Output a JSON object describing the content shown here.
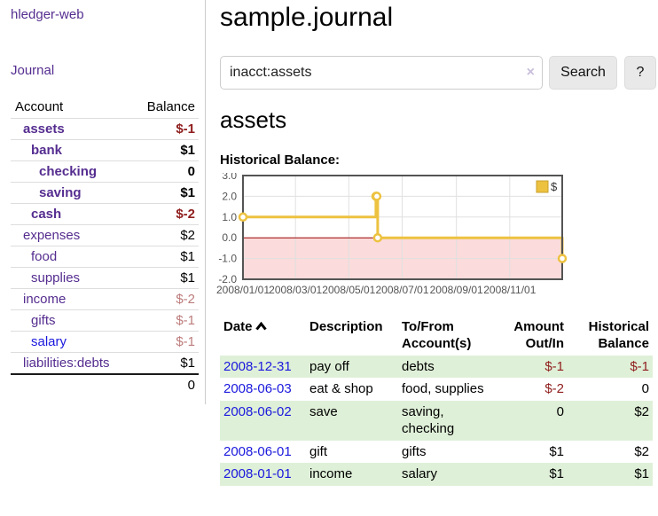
{
  "sidebar": {
    "brand": "hledger-web",
    "nav_journal": "Journal",
    "accounts_table": {
      "headers": [
        "Account",
        "Balance"
      ],
      "rows": [
        {
          "account": "assets",
          "indent": 1,
          "bold": true,
          "balance": "$-1",
          "balance_class": "neg-strong",
          "unvisited": false
        },
        {
          "account": "bank",
          "indent": 2,
          "bold": true,
          "balance": "$1",
          "balance_class": "plain",
          "unvisited": false
        },
        {
          "account": "checking",
          "indent": 3,
          "bold": true,
          "balance": "0",
          "balance_class": "plain",
          "unvisited": false
        },
        {
          "account": "saving",
          "indent": 3,
          "bold": true,
          "balance": "$1",
          "balance_class": "plain",
          "unvisited": false
        },
        {
          "account": "cash",
          "indent": 2,
          "bold": true,
          "balance": "$-2",
          "balance_class": "neg-strong",
          "unvisited": false
        },
        {
          "account": "expenses",
          "indent": 1,
          "bold": false,
          "balance": "$2",
          "balance_class": "plain",
          "unvisited": false
        },
        {
          "account": "food",
          "indent": 2,
          "bold": false,
          "balance": "$1",
          "balance_class": "plain",
          "unvisited": false
        },
        {
          "account": "supplies",
          "indent": 2,
          "bold": false,
          "balance": "$1",
          "balance_class": "plain",
          "unvisited": false
        },
        {
          "account": "income",
          "indent": 1,
          "bold": false,
          "balance": "$-2",
          "balance_class": "neg-soft",
          "unvisited": false
        },
        {
          "account": "gifts",
          "indent": 2,
          "bold": false,
          "balance": "$-1",
          "balance_class": "neg-soft",
          "unvisited": false
        },
        {
          "account": "salary",
          "indent": 2,
          "bold": false,
          "balance": "$-1",
          "balance_class": "neg-soft",
          "unvisited": true
        },
        {
          "account": "liabilities:debts",
          "indent": 1,
          "bold": false,
          "balance": "$1",
          "balance_class": "plain",
          "unvisited": false
        }
      ],
      "total": "0"
    }
  },
  "main": {
    "title": "sample.journal",
    "search": {
      "value": "inacct:assets",
      "clear_icon": "×",
      "button_label": "Search",
      "help_label": "?"
    },
    "account_heading": "assets",
    "chart_label": "Historical Balance:"
  },
  "chart_data": {
    "type": "line",
    "title": "Historical Balance",
    "steps": true,
    "series": [
      {
        "name": "$",
        "color": "#edc240",
        "points": [
          [
            "2008-01-01",
            1
          ],
          [
            "2008-06-01",
            2
          ],
          [
            "2008-06-02",
            2
          ],
          [
            "2008-06-03",
            0
          ],
          [
            "2008-12-31",
            -1
          ]
        ]
      }
    ],
    "xticks": [
      "2008/01/01",
      "2008/03/01",
      "2008/05/01",
      "2008/07/01",
      "2008/09/01",
      "2008/11/01"
    ],
    "yticks": [
      "3.0",
      "2.0",
      "1.0",
      "0.0",
      "-1.0",
      "-2.0"
    ],
    "xrange": [
      "2008-01-01",
      "2008-12-31"
    ],
    "ylim": [
      -2,
      3
    ],
    "grid": true,
    "legend_position": "top-right",
    "negative_region_fill": "#fbdbdb",
    "zero_line_color": "#990000",
    "grid_color": "#e0e0e0",
    "border_color": "#545454"
  },
  "register": {
    "headers": [
      "Date",
      "Description",
      "To/From Account(s)",
      "Amount Out/In",
      "Historical Balance"
    ],
    "sort_icon": "chevron-up",
    "rows": [
      {
        "date": "2008-12-31",
        "description": "pay off",
        "accounts": "debts",
        "amount": "$-1",
        "amount_negative": true,
        "balance": "$-1",
        "balance_negative": true
      },
      {
        "date": "2008-06-03",
        "description": "eat & shop",
        "accounts": "food, supplies",
        "amount": "$-2",
        "amount_negative": true,
        "balance": "0",
        "balance_negative": false
      },
      {
        "date": "2008-06-02",
        "description": "save",
        "accounts": "saving, checking",
        "amount": "0",
        "amount_negative": false,
        "balance": "$2",
        "balance_negative": false
      },
      {
        "date": "2008-06-01",
        "description": "gift",
        "accounts": "gifts",
        "amount": "$1",
        "amount_negative": false,
        "balance": "$2",
        "balance_negative": false
      },
      {
        "date": "2008-01-01",
        "description": "income",
        "accounts": "salary",
        "amount": "$1",
        "amount_negative": false,
        "balance": "$1",
        "balance_negative": false
      }
    ]
  }
}
